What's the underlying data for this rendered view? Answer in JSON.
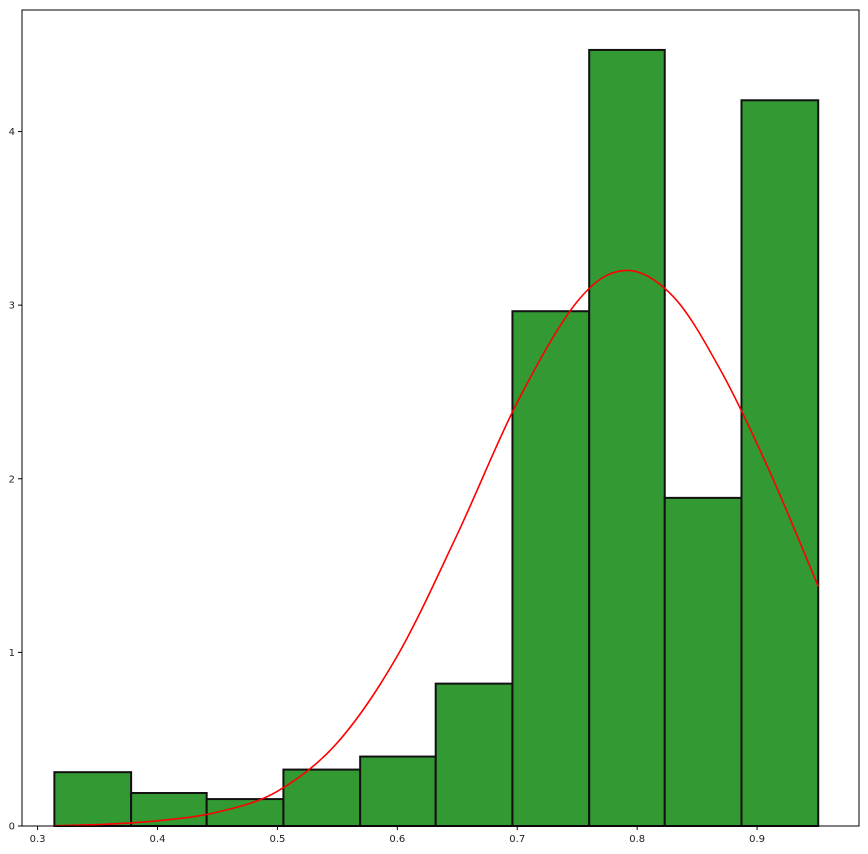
{
  "chart_data": {
    "type": "bar",
    "title": "",
    "xlabel": "",
    "ylabel": "",
    "xlim": [
      0.287,
      0.985
    ],
    "ylim": [
      0,
      4.7
    ],
    "grid": false,
    "xticks": [
      0.3,
      0.4,
      0.5,
      0.6,
      0.7,
      0.8,
      0.9
    ],
    "xtick_labels": [
      "0.3",
      "0.4",
      "0.5",
      "0.6",
      "0.7",
      "0.8",
      "0.9"
    ],
    "yticks": [
      0,
      1,
      2,
      3,
      4
    ],
    "ytick_labels": [
      "0",
      "1",
      "2",
      "3",
      "4"
    ],
    "series": [
      {
        "name": "histogram",
        "kind": "bar",
        "color": "#339933",
        "edge_color": "#111111",
        "bin_edges": [
          0.314,
          0.378,
          0.441,
          0.505,
          0.569,
          0.632,
          0.696,
          0.76,
          0.823,
          0.887,
          0.951
        ],
        "values": [
          0.31,
          0.19,
          0.155,
          0.325,
          0.4,
          0.82,
          2.965,
          4.47,
          1.89,
          4.18
        ]
      },
      {
        "name": "density curve",
        "kind": "line",
        "color": "#ff0000",
        "x": [
          0.314,
          0.35,
          0.4,
          0.45,
          0.5,
          0.55,
          0.6,
          0.65,
          0.7,
          0.75,
          0.79,
          0.83,
          0.87,
          0.91,
          0.951
        ],
        "values": [
          0.002,
          0.008,
          0.03,
          0.08,
          0.2,
          0.48,
          0.98,
          1.68,
          2.44,
          3.02,
          3.2,
          3.05,
          2.62,
          2.05,
          1.38
        ]
      }
    ]
  }
}
